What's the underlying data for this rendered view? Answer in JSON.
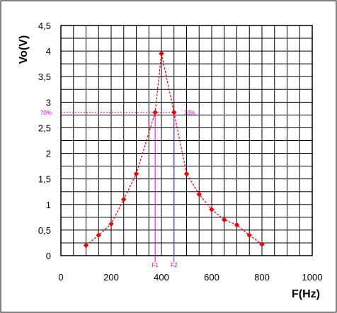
{
  "chart_data": {
    "type": "line",
    "xlabel": "F(Hz)",
    "ylabel": "Vo(V)",
    "xlim": [
      0,
      1000
    ],
    "ylim": [
      0,
      4.5
    ],
    "x_ticks": [
      0,
      200,
      400,
      600,
      800,
      1000
    ],
    "x_tick_labels": [
      "0",
      "200",
      "400",
      "600",
      "800",
      "1000"
    ],
    "y_ticks": [
      0,
      0.5,
      1,
      1.5,
      2,
      2.5,
      3,
      3.5,
      4,
      4.5
    ],
    "y_tick_labels": [
      "0",
      "0,5",
      "1",
      "1,5",
      "2",
      "2,5",
      "3",
      "3,5",
      "4",
      "4,5"
    ],
    "grid": true,
    "series": [
      {
        "x": [
          100,
          150,
          200,
          250,
          300,
          375,
          400,
          450,
          500,
          550,
          600,
          650,
          700,
          750,
          800
        ],
        "y": [
          0.2,
          0.4,
          0.62,
          1.1,
          1.6,
          2.8,
          3.95,
          2.8,
          1.6,
          1.2,
          0.9,
          0.7,
          0.6,
          0.4,
          0.22
        ],
        "color": "#e00000",
        "line_style": "dashed",
        "marker": "diamond"
      }
    ],
    "annotations": {
      "level": 2.8,
      "level_label_left": "70%",
      "level_label_right": "70%",
      "f1": 375,
      "f2": 450,
      "f1_label": "F1",
      "f2_label": "F2",
      "color": "#d400d4"
    }
  }
}
